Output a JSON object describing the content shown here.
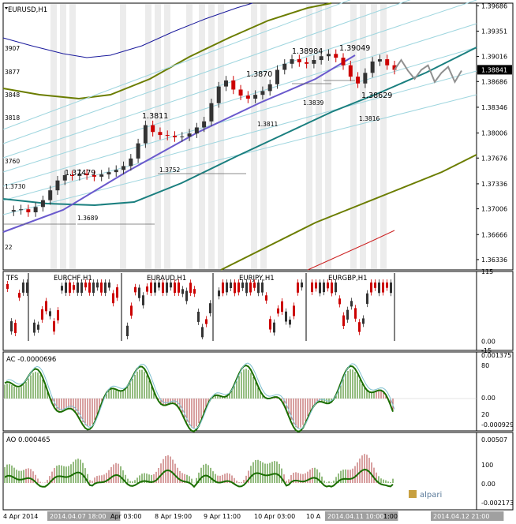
{
  "chart_data": [
    {
      "type": "line",
      "title": "EURUSD,H1",
      "y_axis_labels": [
        "1.39686",
        "1.39351",
        "1.39016",
        "1.38841",
        "1.38686",
        "1.38346",
        "1.38006",
        "1.37676",
        "1.37336",
        "1.37006",
        "1.36666",
        "1.36336"
      ],
      "ylim": [
        1.362,
        1.3972
      ],
      "current_price": "1.38841",
      "price_series": [
        1.3697,
        1.3699,
        1.37,
        1.3696,
        1.3703,
        1.3712,
        1.3725,
        1.3738,
        1.3745,
        1.3744,
        1.3747,
        1.3745,
        1.3743,
        1.3746,
        1.3749,
        1.3752,
        1.3757,
        1.3767,
        1.3787,
        1.3811,
        1.3802,
        1.3798,
        1.3797,
        1.3795,
        1.3796,
        1.38,
        1.3808,
        1.3816,
        1.384,
        1.3862,
        1.387,
        1.3858,
        1.385,
        1.3846,
        1.3851,
        1.3856,
        1.3865,
        1.3884,
        1.3892,
        1.3898,
        1.3894,
        1.3892,
        1.3897,
        1.3902,
        1.3905,
        1.39,
        1.389,
        1.3875,
        1.3866,
        1.388,
        1.3895,
        1.3898,
        1.389,
        1.3884
      ],
      "forecast_series": [
        1.3884,
        1.3897,
        1.3883,
        1.3872,
        1.3884,
        1.389,
        1.3868,
        1.388,
        1.3888,
        1.3868,
        1.3883
      ],
      "annotations": [
        "1.39049",
        "1.38984",
        "1.3870",
        "1.3811",
        "1.37479",
        "1.38629",
        "1.3839",
        "1.3811",
        "1.3816",
        "1.3752",
        "1.3689",
        "1.3730",
        "3907",
        "3877",
        "3848",
        "3818",
        "3760",
        "22"
      ],
      "xlabel": "",
      "x_tick_labels": [
        "4 Apr 2014",
        "2014.04.07 18:00",
        "Apr 03:00",
        "8 Apr 19:00",
        "9 Apr 11:00",
        "10 Apr 03:00",
        "10 A",
        "2014.04.11 10:00",
        "1:00",
        "2014.04.12 21:00"
      ]
    },
    {
      "type": "bar",
      "title_left": "TFS",
      "pairs": [
        "EURCHF,H1",
        "EURAUD,H1",
        "EURJPY,H1",
        "EURGBP,H1"
      ],
      "y_axis_labels": [
        "115",
        "0.00",
        "-15"
      ],
      "ylim": [
        -15,
        115
      ]
    },
    {
      "type": "bar",
      "title": "AC -0.0000696",
      "y_axis_labels": [
        "0.001375",
        "80",
        "0.00",
        "20",
        "-0.000929"
      ],
      "ylim": [
        -0.000929,
        0.001375
      ]
    },
    {
      "type": "bar",
      "title": "AO 0.000465",
      "y_axis_labels": [
        "0.00507",
        "100",
        "0.00",
        "-0.002173"
      ],
      "ylim": [
        -0.002173,
        0.00507
      ]
    }
  ],
  "logo_text": "alpari",
  "colors": {
    "bull": "#333333",
    "bear": "#cc0000",
    "blue_band": "#1a1a9c",
    "olive_band": "#6b7d00",
    "teal": "#1a7f7f",
    "light_teal": "#9fd6df",
    "purple": "#6a5acd",
    "green_osc": "#1a6e00",
    "forecast": "#909090"
  }
}
